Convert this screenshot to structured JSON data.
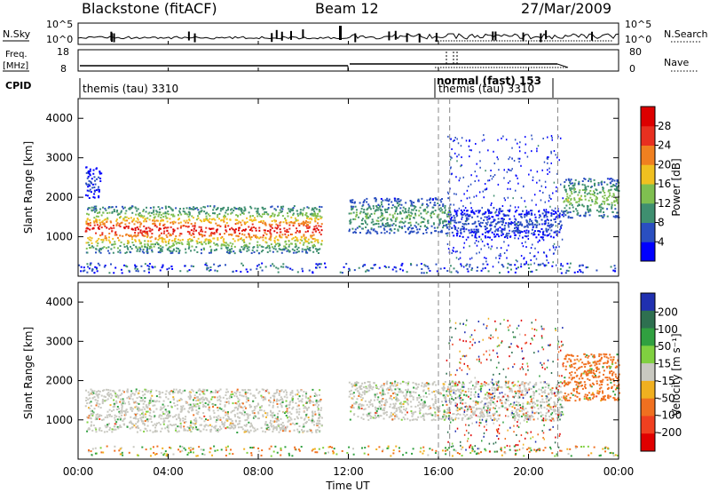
{
  "header": {
    "station": "Blackstone (fitACF)",
    "beam": "Beam 12",
    "date": "27/Mar/2009"
  },
  "sky_panel": {
    "left_label": "N.Sky",
    "right_label": "N.Search",
    "left_ticks": [
      "10^5",
      "10^0"
    ],
    "right_ticks": [
      "10^5",
      "10^0"
    ]
  },
  "freq_panel": {
    "left_label_line1": "Freq.",
    "left_label_line2": "[MHz]",
    "right_label": "Nave",
    "left_ticks": [
      "18",
      "8"
    ],
    "right_ticks": [
      "80",
      "0"
    ]
  },
  "cpid": {
    "label": "CPID",
    "text1": "themis (tau) 3310",
    "text2": "normal (fast) 153",
    "text3": "themis (tau) 3310"
  },
  "power_panel": {
    "ylabel": "Slant Range [km]",
    "yticks": [
      "1000",
      "2000",
      "3000",
      "4000"
    ],
    "colorbar_label": "Power [dB]",
    "colorbar_ticks": [
      "4",
      "8",
      "12",
      "16",
      "20",
      "24",
      "28"
    ],
    "colors": [
      "#0000ff",
      "#2a4fc0",
      "#3f8f70",
      "#7fbf50",
      "#f0c020",
      "#f08020",
      "#e83020",
      "#dd0000"
    ]
  },
  "velocity_panel": {
    "ylabel": "Slant Range [km]",
    "yticks": [
      "1000",
      "2000",
      "3000",
      "4000"
    ],
    "colorbar_label": "Velocity [m s⁻¹]",
    "colorbar_ticks": [
      "200",
      "100",
      "50",
      "15",
      "-15",
      "-50",
      "-100",
      "-200"
    ],
    "colors": [
      "#2030b0",
      "#2e7050",
      "#30a040",
      "#80d040",
      "#c8c8c0",
      "#f0b020",
      "#f07020",
      "#f04020",
      "#e00000"
    ]
  },
  "xaxis": {
    "label": "Time UT",
    "ticks": [
      "00:00",
      "04:00",
      "08:00",
      "12:00",
      "16:00",
      "20:00",
      "00:00"
    ]
  },
  "chart_data": [
    {
      "type": "heatmap",
      "title": "Power",
      "xlabel": "Time UT",
      "ylabel": "Slant Range [km]",
      "xlim_hours": [
        0,
        24
      ],
      "ylim_km": [
        0,
        4500
      ],
      "color_range_dB": [
        0,
        30
      ],
      "echo_regions": [
        {
          "t_start": 0.3,
          "t_end": 10.8,
          "range_low_km": 600,
          "range_high_km": 1800,
          "typical_power_dB": 18,
          "peak_power_dB": 28
        },
        {
          "t_start": 0.3,
          "t_end": 1.0,
          "range_low_km": 2000,
          "range_high_km": 2800,
          "typical_power_dB": 5
        },
        {
          "t_start": 12.0,
          "t_end": 16.5,
          "range_low_km": 1100,
          "range_high_km": 2000,
          "typical_power_dB": 12
        },
        {
          "t_start": 16.5,
          "t_end": 21.5,
          "range_low_km": 1000,
          "range_high_km": 1700,
          "typical_power_dB": 6
        },
        {
          "t_start": 21.5,
          "t_end": 24.0,
          "range_low_km": 1500,
          "range_high_km": 2500,
          "typical_power_dB": 14
        }
      ],
      "mode_change_markers_hours": [
        16.0,
        16.5,
        21.3
      ]
    },
    {
      "type": "heatmap",
      "title": "Velocity",
      "xlabel": "Time UT",
      "ylabel": "Slant Range [km]",
      "xlim_hours": [
        0,
        24
      ],
      "ylim_km": [
        0,
        4500
      ],
      "color_range_ms": [
        -250,
        250
      ],
      "echo_regions": [
        {
          "t_start": 0.3,
          "t_end": 10.8,
          "range_low_km": 700,
          "range_high_km": 1800,
          "typical_velocity_ms": 0
        },
        {
          "t_start": 12.0,
          "t_end": 21.5,
          "range_low_km": 1000,
          "range_high_km": 2000,
          "typical_velocity_ms": 0
        },
        {
          "t_start": 21.5,
          "t_end": 24.0,
          "range_low_km": 1500,
          "range_high_km": 2700,
          "typical_velocity_ms": -40
        }
      ],
      "mode_change_markers_hours": [
        16.0,
        16.5,
        21.3
      ]
    }
  ]
}
